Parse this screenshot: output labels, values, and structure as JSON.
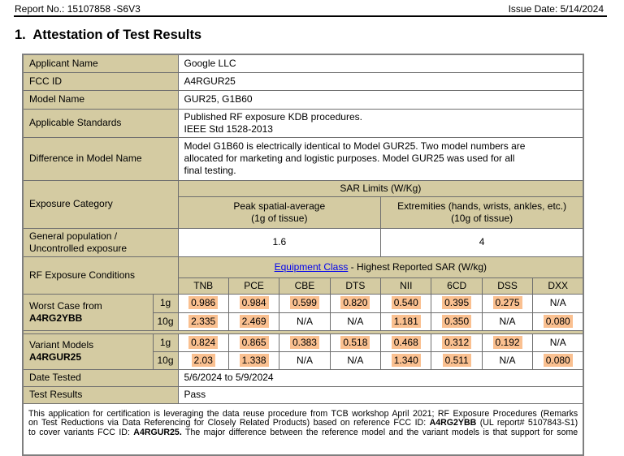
{
  "page_header": {
    "report_no": "Report No.: 15107858 -S6V3",
    "issue_date": "Issue Date: 5/14/2024"
  },
  "section_title": "1.  Attestation of Test Results",
  "colors": {
    "tan": "#d4cba2",
    "highlight": "#fac090",
    "link": "#0000ee"
  },
  "info_rows": [
    {
      "label": "Applicant Name",
      "value": "Google LLC"
    },
    {
      "label": "FCC ID",
      "value": "A4RGUR25"
    },
    {
      "label": "Model Name",
      "value": "GUR25, G1B60"
    },
    {
      "label": "Applicable Standards",
      "line1": "Published RF exposure KDB procedures.",
      "line2": "IEEE Std 1528-2013"
    },
    {
      "label": "Difference in Model Name",
      "value_lines": [
        "Model G1B60 is electrically identical to Model GUR25. Two model numbers are",
        "allocated for marketing and logistic purposes. Model GUR25 was used for all",
        "final testing."
      ]
    }
  ],
  "sar_limits": {
    "row_label": "Exposure Category",
    "header": "SAR Limits (W/Kg)",
    "peak_line1": "Peak spatial-average",
    "peak_line2": "(1g of tissue)",
    "ext_line1": "Extremities (hands, wrists, ankles, etc.)",
    "ext_line2": "(10g of tissue)",
    "general_label": "General population / Uncontrolled exposure",
    "general_peak": "1.6",
    "general_ext": "4"
  },
  "rf_exposure": {
    "row_label": "RF Exposure Conditions",
    "link_text": "Equipment Class",
    "header_rest": " - Highest Reported SAR (W/kg)",
    "columns": [
      "TNB",
      "PCE",
      "CBE",
      "DTS",
      "NII",
      "6CD",
      "DSS",
      "DXX"
    ],
    "groups": [
      {
        "label_line1": "Worst Case from",
        "label_line2": "A4RG2YBB",
        "rows": [
          {
            "tissue": "1g",
            "cells": [
              {
                "v": "0.986",
                "hl": true
              },
              {
                "v": "0.984",
                "hl": true
              },
              {
                "v": "0.599",
                "hl": true
              },
              {
                "v": "0.820",
                "hl": true
              },
              {
                "v": "0.540",
                "hl": true
              },
              {
                "v": "0.395",
                "hl": true
              },
              {
                "v": "0.275",
                "hl": true
              },
              {
                "v": "N/A",
                "hl": false
              }
            ]
          },
          {
            "tissue": "10g",
            "cells": [
              {
                "v": "2.335",
                "hl": true
              },
              {
                "v": "2.469",
                "hl": true
              },
              {
                "v": "N/A",
                "hl": false
              },
              {
                "v": "N/A",
                "hl": false
              },
              {
                "v": "1.181",
                "hl": true
              },
              {
                "v": "0.350",
                "hl": true
              },
              {
                "v": "N/A",
                "hl": false
              },
              {
                "v": "0.080",
                "hl": true
              }
            ]
          }
        ]
      },
      {
        "label_line1": "Variant Models",
        "label_line2": "A4RGUR25",
        "rows": [
          {
            "tissue": "1g",
            "cells": [
              {
                "v": "0.824",
                "hl": true
              },
              {
                "v": "0.865",
                "hl": true
              },
              {
                "v": "0.383",
                "hl": true
              },
              {
                "v": "0.518",
                "hl": true
              },
              {
                "v": "0.468",
                "hl": true
              },
              {
                "v": "0.312",
                "hl": true
              },
              {
                "v": "0.192",
                "hl": true
              },
              {
                "v": "N/A",
                "hl": false
              }
            ]
          },
          {
            "tissue": "10g",
            "cells": [
              {
                "v": "2.03",
                "hl": true
              },
              {
                "v": "1.338",
                "hl": true
              },
              {
                "v": "N/A",
                "hl": false
              },
              {
                "v": "N/A",
                "hl": false
              },
              {
                "v": "1.340",
                "hl": true
              },
              {
                "v": "0.511",
                "hl": true
              },
              {
                "v": "N/A",
                "hl": false
              },
              {
                "v": "0.080",
                "hl": true
              }
            ]
          }
        ]
      }
    ]
  },
  "date_tested": {
    "label": "Date Tested",
    "value": "5/6/2024 to 5/9/2024"
  },
  "test_results": {
    "label": "Test Results",
    "value": "Pass"
  },
  "footnote": {
    "lines": [
      {
        "segments": [
          {
            "t": "This application for certification is leveraging the data reuse procedure from TCB workshop April 2021; RF Exposure Procedures (Remarks",
            "b": false
          }
        ]
      },
      {
        "segments": [
          {
            "t": "on Test Reductions via Data Referencing for Closely Related Products) based on reference FCC ID: ",
            "b": false
          },
          {
            "t": "A4RG2YBB",
            "b": true
          },
          {
            "t": " (UL report# 5107843-S1)",
            "b": false
          }
        ]
      },
      {
        "segments": [
          {
            "t": "to cover variants FCC ID: ",
            "b": false
          },
          {
            "t": "A4RGUR25.",
            "b": true
          },
          {
            "t": "  The major difference between the reference model and the variant models is that support for some",
            "b": false
          }
        ]
      }
    ]
  }
}
